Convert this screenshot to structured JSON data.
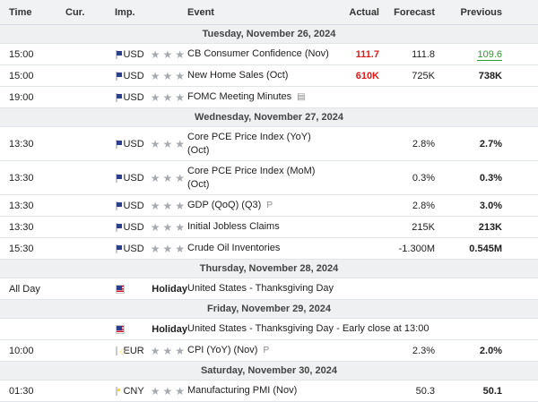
{
  "headers": {
    "time": "Time",
    "cur": "Cur.",
    "imp": "Imp.",
    "event": "Event",
    "actual": "Actual",
    "forecast": "Forecast",
    "previous": "Previous"
  },
  "days": [
    {
      "label": "Tuesday, November 26, 2024"
    },
    {
      "label": "Wednesday, November 27, 2024"
    },
    {
      "label": "Thursday, November 28, 2024"
    },
    {
      "label": "Friday, November 29, 2024"
    },
    {
      "label": "Saturday, November 30, 2024"
    }
  ],
  "events": {
    "e1": {
      "time": "15:00",
      "cur": "USD",
      "name": "CB Consumer Confidence (Nov)",
      "actual": "111.7",
      "forecast": "111.8",
      "previous": "109.6"
    },
    "e2": {
      "time": "15:00",
      "cur": "USD",
      "name": "New Home Sales (Oct)",
      "actual": "610K",
      "forecast": "725K",
      "previous": "738K"
    },
    "e3": {
      "time": "19:00",
      "cur": "USD",
      "name": "FOMC Meeting Minutes",
      "actual": "",
      "forecast": "",
      "previous": ""
    },
    "e4": {
      "time": "13:30",
      "cur": "USD",
      "name": "Core PCE Price Index (YoY)",
      "name2": "(Oct)",
      "actual": "",
      "forecast": "2.8%",
      "previous": "2.7%"
    },
    "e5": {
      "time": "13:30",
      "cur": "USD",
      "name": "Core PCE Price Index (MoM)",
      "name2": "(Oct)",
      "actual": "",
      "forecast": "0.3%",
      "previous": "0.3%"
    },
    "e6": {
      "time": "13:30",
      "cur": "USD",
      "name": "GDP (QoQ) (Q3)",
      "actual": "",
      "forecast": "2.8%",
      "previous": "3.0%"
    },
    "e7": {
      "time": "13:30",
      "cur": "USD",
      "name": "Initial Jobless Claims",
      "actual": "",
      "forecast": "215K",
      "previous": "213K"
    },
    "e8": {
      "time": "15:30",
      "cur": "USD",
      "name": "Crude Oil Inventories",
      "actual": "",
      "forecast": "-1.300M",
      "previous": "0.545M"
    },
    "e9": {
      "time": "All Day",
      "cur": "",
      "holiday": "Holiday",
      "name": "United States - Thanksgiving Day"
    },
    "e10": {
      "time": "",
      "cur": "",
      "holiday": "Holiday",
      "name": "United States - Thanksgiving Day - Early close at 13:00"
    },
    "e11": {
      "time": "10:00",
      "cur": "EUR",
      "name": "CPI (YoY) (Nov)",
      "actual": "",
      "forecast": "2.3%",
      "previous": "2.0%"
    },
    "e12": {
      "time": "01:30",
      "cur": "CNY",
      "name": "Manufacturing PMI (Nov)",
      "actual": "",
      "forecast": "50.3",
      "previous": "50.1"
    }
  },
  "stars": "★★★",
  "icons": {
    "doc": "document-icon",
    "prelim": "preliminary-icon",
    "prelim_glyph": "P",
    "doc_glyph": "▤"
  },
  "colors": {
    "actual_worse": "#e01a1a",
    "previous_better": "#2d9b2d"
  }
}
